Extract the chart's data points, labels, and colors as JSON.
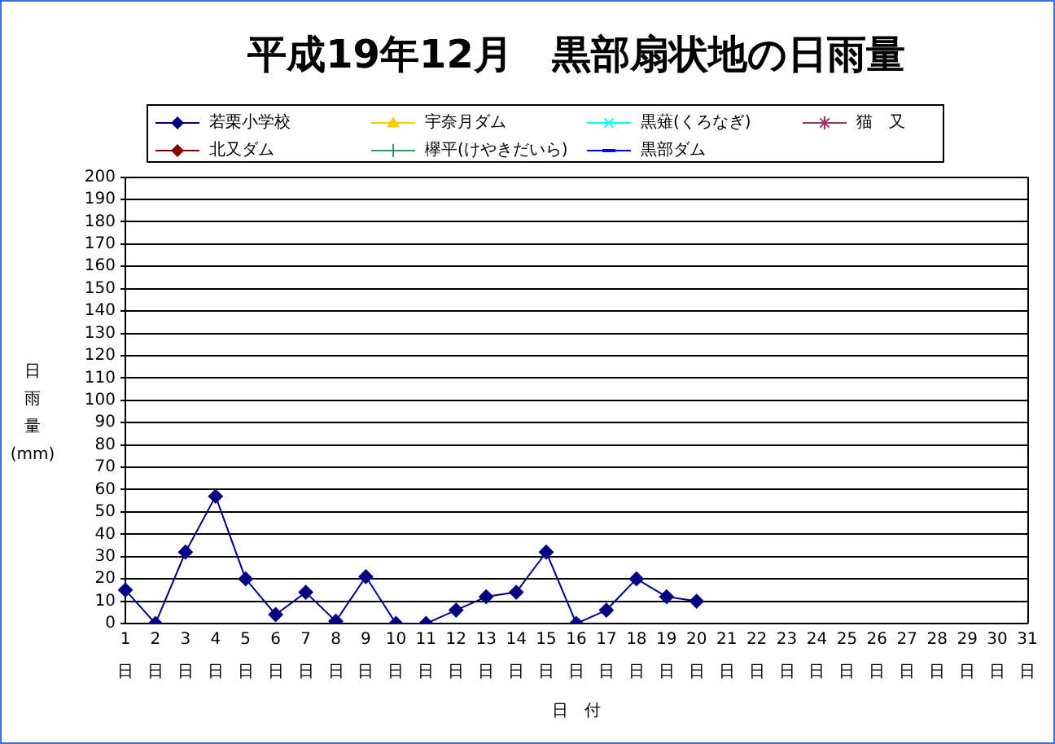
{
  "chart_data": {
    "type": "line",
    "title": "平成19年12月　黒部扇状地の日雨量",
    "xlabel": "日　付",
    "ylabel": "日雨量(mm)",
    "categories": [
      "1\n日",
      "2\n日",
      "3\n日",
      "4\n日",
      "5\n日",
      "6\n日",
      "7\n日",
      "8\n日",
      "9\n日",
      "10\n日",
      "11\n日",
      "12\n日",
      "13\n日",
      "14\n日",
      "15\n日",
      "16\n日",
      "17\n日",
      "18\n日",
      "19\n日",
      "20\n日",
      "21\n日",
      "22\n日",
      "23\n日",
      "24\n日",
      "25\n日",
      "26\n日",
      "27\n日",
      "28\n日",
      "29\n日",
      "30\n日",
      "31\n日"
    ],
    "series": [
      {
        "name": "若栗小学校",
        "color": "#000080",
        "marker": "diamond",
        "values": [
          15,
          0,
          32,
          57,
          20,
          4,
          14,
          1,
          21,
          0,
          0,
          6,
          12,
          14,
          32,
          0,
          6,
          20,
          12,
          10,
          null,
          null,
          null,
          null,
          null,
          null,
          null,
          null,
          null,
          null,
          null
        ]
      },
      {
        "name": "宇奈月ダム",
        "color": "#ffcc00",
        "marker": "triangle",
        "values": [
          null,
          null,
          null,
          null,
          null,
          null,
          null,
          null,
          null,
          null,
          null,
          null,
          null,
          null,
          null,
          null,
          null,
          null,
          null,
          null,
          null,
          null,
          null,
          null,
          null,
          null,
          null,
          null,
          null,
          null,
          null
        ]
      },
      {
        "name": "黒薙(くろなぎ)",
        "color": "#00ffff",
        "marker": "x",
        "values": [
          null,
          null,
          null,
          null,
          null,
          null,
          null,
          null,
          null,
          null,
          null,
          null,
          null,
          null,
          null,
          null,
          null,
          null,
          null,
          null,
          null,
          null,
          null,
          null,
          null,
          null,
          null,
          null,
          null,
          null,
          null
        ]
      },
      {
        "name": "猫　又",
        "color": "#993366",
        "marker": "star",
        "values": [
          null,
          null,
          null,
          null,
          null,
          null,
          null,
          null,
          null,
          null,
          null,
          null,
          null,
          null,
          null,
          null,
          null,
          null,
          null,
          null,
          null,
          null,
          null,
          null,
          null,
          null,
          null,
          null,
          null,
          null,
          null
        ]
      },
      {
        "name": "北又ダム",
        "color": "#800000",
        "marker": "diamond",
        "values": [
          null,
          null,
          null,
          null,
          null,
          null,
          null,
          null,
          null,
          null,
          null,
          null,
          null,
          null,
          null,
          null,
          null,
          null,
          null,
          null,
          null,
          null,
          null,
          null,
          null,
          null,
          null,
          null,
          null,
          null,
          null
        ]
      },
      {
        "name": "欅平(けやきだいら)",
        "color": "#339966",
        "marker": "cross",
        "values": [
          null,
          null,
          null,
          null,
          null,
          null,
          null,
          null,
          null,
          null,
          null,
          null,
          null,
          null,
          null,
          null,
          null,
          null,
          null,
          null,
          null,
          null,
          null,
          null,
          null,
          null,
          null,
          null,
          null,
          null,
          null
        ]
      },
      {
        "name": "黒部ダム",
        "color": "#0000ff",
        "marker": "dash",
        "values": [
          null,
          null,
          null,
          null,
          null,
          null,
          null,
          null,
          null,
          null,
          null,
          null,
          null,
          null,
          null,
          null,
          null,
          null,
          null,
          null,
          null,
          null,
          null,
          null,
          null,
          null,
          null,
          null,
          null,
          null,
          null
        ]
      }
    ],
    "ylim": [
      0,
      200
    ],
    "yticks": [
      0,
      10,
      20,
      30,
      40,
      50,
      60,
      70,
      80,
      90,
      100,
      110,
      120,
      130,
      140,
      150,
      160,
      170,
      180,
      190,
      200
    ],
    "grid": "y",
    "legend": "top"
  }
}
